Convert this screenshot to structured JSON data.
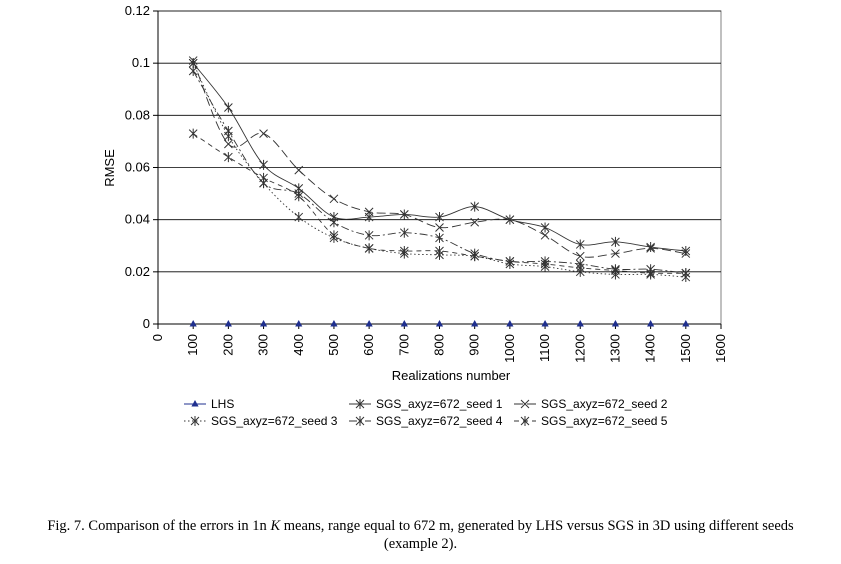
{
  "chart_data": {
    "type": "line",
    "xlabel": "Realizations number",
    "ylabel": "RMSE",
    "xlim": [
      0,
      1600
    ],
    "ylim": [
      0,
      0.12
    ],
    "x_ticks": [
      "0",
      "100",
      "200",
      "300",
      "400",
      "500",
      "600",
      "700",
      "800",
      "900",
      "1000",
      "1100",
      "1200",
      "1300",
      "1400",
      "1500",
      "1600"
    ],
    "y_ticks": [
      "0",
      "0.02",
      "0.04",
      "0.06",
      "0.08",
      "0.1",
      "0.12"
    ],
    "grid": "horizontal major gridlines",
    "legend_position": "bottom",
    "x": [
      100,
      200,
      300,
      400,
      500,
      600,
      700,
      800,
      900,
      1000,
      1100,
      1200,
      1300,
      1400,
      1500
    ],
    "series": [
      {
        "name": "LHS",
        "marker": "triangle",
        "color": "#1f2f8f",
        "values": [
          0,
          0,
          0,
          0,
          0,
          0,
          0,
          0,
          0,
          0,
          0,
          0,
          0,
          0,
          0
        ]
      },
      {
        "name": "SGS_axyz=672_seed  1",
        "marker": "star",
        "dash": "solid",
        "color": "#333333",
        "values": [
          0.1,
          0.083,
          0.061,
          0.052,
          0.041,
          0.041,
          0.042,
          0.041,
          0.045,
          0.04,
          0.037,
          0.0305,
          0.0315,
          0.0295,
          0.028
        ]
      },
      {
        "name": "SGS_axyz=672_seed  2",
        "marker": "x",
        "dash": "longdash",
        "color": "#333333",
        "values": [
          0.101,
          0.069,
          0.073,
          0.059,
          0.048,
          0.043,
          0.042,
          0.037,
          0.039,
          0.04,
          0.034,
          0.026,
          0.027,
          0.029,
          0.027
        ]
      },
      {
        "name": "SGS_axyz=672_seed  3",
        "marker": "star",
        "dash": "dotted",
        "color": "#333333",
        "values": [
          0.1,
          0.072,
          0.054,
          0.041,
          0.033,
          0.029,
          0.027,
          0.0265,
          0.026,
          0.023,
          0.022,
          0.02,
          0.019,
          0.019,
          0.018
        ]
      },
      {
        "name": "SGS_axyz=672_seed  4",
        "marker": "star",
        "dash": "dashdot",
        "color": "#333333",
        "values": [
          0.097,
          0.074,
          0.054,
          0.05,
          0.039,
          0.034,
          0.035,
          0.033,
          0.027,
          0.024,
          0.024,
          0.023,
          0.021,
          0.021,
          0.0195
        ]
      },
      {
        "name": "SGS_axyz=672_seed  5",
        "marker": "star",
        "dash": "shortdash",
        "color": "#333333",
        "values": [
          0.073,
          0.064,
          0.056,
          0.049,
          0.034,
          0.029,
          0.028,
          0.028,
          0.026,
          0.024,
          0.023,
          0.0215,
          0.0205,
          0.0195,
          0.0195
        ]
      }
    ]
  },
  "caption": {
    "part1": "Fig. 7. Comparison of the errors in 1n ",
    "k": "K",
    "part2": " means, range equal to 672 m, generated by LHS versus SGS in 3D using different seeds",
    "line2": "(example 2)."
  }
}
